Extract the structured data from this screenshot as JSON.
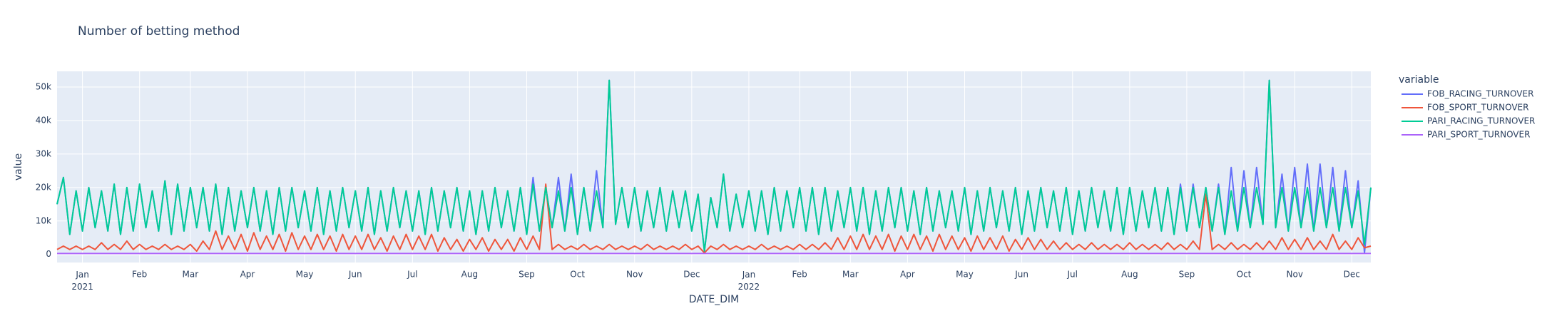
{
  "chart_data": {
    "type": "line",
    "title": "Number of betting method",
    "x_label": "DATE_DIM",
    "y_label": "value",
    "legend_title": "variable",
    "grid": true,
    "ylim": [
      -2400,
      54700
    ],
    "yticks": [
      0,
      {
        "value": 10000,
        "label": "10k"
      },
      {
        "value": 20000,
        "label": "20k"
      },
      {
        "value": 30000,
        "label": "30k"
      },
      {
        "value": 40000,
        "label": "40k"
      },
      {
        "value": 50000,
        "label": "50k"
      }
    ],
    "categories": [
      null,
      null,
      null,
      null,
      "Jan\n2021",
      null,
      null,
      null,
      null,
      null,
      null,
      null,
      null,
      "Feb",
      null,
      null,
      null,
      null,
      null,
      null,
      null,
      "Mar",
      null,
      null,
      null,
      null,
      null,
      null,
      null,
      null,
      "Apr",
      null,
      null,
      null,
      null,
      null,
      null,
      null,
      null,
      "May",
      null,
      null,
      null,
      null,
      null,
      null,
      null,
      "Jun",
      null,
      null,
      null,
      null,
      null,
      null,
      null,
      null,
      "Jul",
      null,
      null,
      null,
      null,
      null,
      null,
      null,
      null,
      "Aug",
      null,
      null,
      null,
      null,
      null,
      null,
      null,
      null,
      "Sep",
      null,
      null,
      null,
      null,
      null,
      null,
      null,
      "Oct",
      null,
      null,
      null,
      null,
      null,
      null,
      null,
      null,
      "Nov",
      null,
      null,
      null,
      null,
      null,
      null,
      null,
      null,
      "Dec",
      null,
      null,
      null,
      null,
      null,
      null,
      null,
      null,
      "Jan\n2022",
      null,
      null,
      null,
      null,
      null,
      null,
      null,
      "Feb",
      null,
      null,
      null,
      null,
      null,
      null,
      null,
      "Mar",
      null,
      null,
      null,
      null,
      null,
      null,
      null,
      null,
      "Apr",
      null,
      null,
      null,
      null,
      null,
      null,
      null,
      null,
      "May",
      null,
      null,
      null,
      null,
      null,
      null,
      null,
      null,
      "Jun",
      null,
      null,
      null,
      null,
      null,
      null,
      null,
      "Jul",
      null,
      null,
      null,
      null,
      null,
      null,
      null,
      null,
      "Aug",
      null,
      null,
      null,
      null,
      null,
      null,
      null,
      null,
      "Sep",
      null,
      null,
      null,
      null,
      null,
      null,
      null,
      null,
      "Oct",
      null,
      null,
      null,
      null,
      null,
      null,
      null,
      "Nov",
      null,
      null,
      null,
      null,
      null,
      null,
      null,
      null,
      "Dec",
      null,
      null,
      null
    ],
    "series": [
      {
        "name": "FOB_RACING_TURNOVER",
        "color": "#636efa",
        "values": [
          15000,
          23000,
          6000,
          19000,
          7000,
          20000,
          8000,
          19000,
          7000,
          21000,
          6000,
          20000,
          7000,
          21000,
          8000,
          19000,
          7000,
          22000,
          6000,
          21000,
          7000,
          20000,
          8000,
          20000,
          7000,
          21000,
          6000,
          20000,
          7000,
          19000,
          8000,
          20000,
          7000,
          19000,
          6000,
          20000,
          7000,
          20000,
          8000,
          19000,
          7000,
          20000,
          6000,
          19000,
          7000,
          20000,
          8000,
          19000,
          7000,
          20000,
          6000,
          19000,
          7000,
          20000,
          8000,
          19000,
          7000,
          19000,
          6000,
          20000,
          7000,
          19000,
          8000,
          20000,
          7000,
          19000,
          6000,
          19000,
          7000,
          20000,
          8000,
          19000,
          7000,
          20000,
          6000,
          23000,
          7000,
          20000,
          8000,
          23000,
          7000,
          24000,
          6000,
          20000,
          7000,
          25000,
          8000,
          52000,
          9000,
          20000,
          8000,
          20000,
          7000,
          19000,
          8000,
          20000,
          7000,
          19000,
          8000,
          19000,
          7000,
          18000,
          1000,
          17000,
          8000,
          24000,
          7000,
          18000,
          8000,
          19000,
          7000,
          19000,
          6000,
          20000,
          7000,
          19000,
          8000,
          20000,
          7000,
          20000,
          6000,
          20000,
          7000,
          19000,
          8000,
          20000,
          7000,
          20000,
          6000,
          19000,
          7000,
          20000,
          8000,
          20000,
          7000,
          19000,
          6000,
          20000,
          7000,
          19000,
          8000,
          19000,
          7000,
          20000,
          6000,
          19000,
          7000,
          20000,
          8000,
          19000,
          7000,
          20000,
          6000,
          19000,
          7000,
          20000,
          8000,
          19000,
          7000,
          20000,
          6000,
          19000,
          7000,
          20000,
          8000,
          19000,
          7000,
          20000,
          6000,
          20000,
          7000,
          19000,
          8000,
          20000,
          7000,
          20000,
          6000,
          21000,
          7000,
          21000,
          8000,
          20000,
          7000,
          21000,
          6000,
          26000,
          7000,
          25000,
          8000,
          26000,
          9000,
          52000,
          8000,
          24000,
          7000,
          26000,
          8000,
          27000,
          7000,
          27000,
          8000,
          26000,
          7000,
          25000,
          8000,
          22000,
          500,
          20000
        ]
      },
      {
        "name": "FOB_SPORT_TURNOVER",
        "color": "#EF553B",
        "values": [
          1500,
          2500,
          1500,
          2500,
          1500,
          2500,
          1500,
          3500,
          1500,
          3000,
          1500,
          4000,
          1500,
          3000,
          1500,
          2500,
          1500,
          3000,
          1500,
          2500,
          1500,
          3000,
          1000,
          4000,
          1500,
          7000,
          1500,
          5500,
          1500,
          6000,
          1000,
          6500,
          1500,
          5500,
          1500,
          6000,
          1000,
          6500,
          1500,
          5500,
          1500,
          6000,
          1500,
          5500,
          1000,
          6000,
          1500,
          5500,
          1500,
          6000,
          1500,
          5000,
          1000,
          5500,
          1500,
          6000,
          1500,
          5500,
          1500,
          6000,
          1000,
          5000,
          1500,
          4500,
          1000,
          4500,
          1500,
          5000,
          1000,
          4500,
          1500,
          4500,
          1000,
          5000,
          1500,
          5500,
          1500,
          21000,
          1500,
          3000,
          1500,
          2500,
          1500,
          3000,
          1500,
          2500,
          1500,
          3000,
          1500,
          2500,
          1500,
          2500,
          1500,
          3000,
          1500,
          2500,
          1500,
          2500,
          1500,
          3000,
          1500,
          2500,
          500,
          2500,
          1500,
          3000,
          1500,
          2500,
          1500,
          2500,
          1500,
          3000,
          1500,
          2500,
          1500,
          2500,
          1500,
          3000,
          1500,
          3000,
          1500,
          3500,
          1500,
          5000,
          1500,
          5500,
          1500,
          6000,
          1500,
          5500,
          1500,
          6000,
          1000,
          5500,
          1500,
          6000,
          1500,
          5500,
          1000,
          6000,
          1500,
          5500,
          1500,
          5000,
          1000,
          5500,
          1500,
          5000,
          1500,
          5500,
          1000,
          4500,
          1500,
          5000,
          1500,
          4500,
          1500,
          4000,
          1500,
          3500,
          1500,
          3000,
          1500,
          3500,
          1500,
          3000,
          1500,
          3000,
          1500,
          3500,
          1500,
          3000,
          1500,
          3000,
          1500,
          3500,
          1500,
          3000,
          1500,
          4000,
          1500,
          18000,
          1500,
          3000,
          1500,
          3500,
          1500,
          3000,
          1500,
          3500,
          1500,
          4000,
          1500,
          5000,
          1500,
          4500,
          1500,
          5000,
          1500,
          4000,
          1500,
          6000,
          1500,
          4000,
          1500,
          5000,
          2000,
          2500
        ]
      },
      {
        "name": "PARI_RACING_TURNOVER",
        "color": "#00cc96",
        "values": [
          15000,
          23000,
          6000,
          19000,
          7000,
          20000,
          8000,
          19000,
          7000,
          21000,
          6000,
          20000,
          7000,
          21000,
          8000,
          19000,
          7000,
          22000,
          6000,
          21000,
          7000,
          20000,
          8000,
          20000,
          7000,
          21000,
          6000,
          20000,
          7000,
          19000,
          8000,
          20000,
          7000,
          19000,
          6000,
          20000,
          7000,
          20000,
          8000,
          19000,
          7000,
          20000,
          6000,
          19000,
          7000,
          20000,
          8000,
          19000,
          7000,
          20000,
          6000,
          19000,
          7000,
          20000,
          8000,
          19000,
          7000,
          19000,
          6000,
          20000,
          7000,
          19000,
          8000,
          20000,
          7000,
          19000,
          6000,
          19000,
          7000,
          20000,
          8000,
          19000,
          7000,
          20000,
          6000,
          21000,
          7000,
          20000,
          8000,
          19000,
          7000,
          20000,
          6000,
          20000,
          7000,
          19000,
          8000,
          52000,
          9000,
          20000,
          8000,
          20000,
          7000,
          19000,
          8000,
          20000,
          7000,
          19000,
          8000,
          19000,
          7000,
          18000,
          1000,
          17000,
          8000,
          24000,
          7000,
          18000,
          8000,
          19000,
          7000,
          19000,
          6000,
          20000,
          7000,
          19000,
          8000,
          20000,
          7000,
          20000,
          6000,
          20000,
          7000,
          19000,
          8000,
          20000,
          7000,
          20000,
          6000,
          19000,
          7000,
          20000,
          8000,
          20000,
          7000,
          19000,
          6000,
          20000,
          7000,
          19000,
          8000,
          19000,
          7000,
          20000,
          6000,
          19000,
          7000,
          20000,
          8000,
          19000,
          7000,
          20000,
          6000,
          19000,
          7000,
          20000,
          8000,
          19000,
          7000,
          20000,
          6000,
          19000,
          7000,
          20000,
          8000,
          19000,
          7000,
          20000,
          6000,
          20000,
          7000,
          19000,
          8000,
          20000,
          7000,
          20000,
          6000,
          20000,
          7000,
          20000,
          8000,
          20000,
          7000,
          20000,
          6000,
          19000,
          7000,
          20000,
          8000,
          20000,
          9000,
          52000,
          8000,
          20000,
          7000,
          20000,
          8000,
          20000,
          7000,
          20000,
          8000,
          20000,
          7000,
          20000,
          8000,
          19000,
          3000,
          20000
        ]
      },
      {
        "name": "PARI_SPORT_TURNOVER",
        "color": "#ab63fa",
        "values": [
          300,
          300,
          300,
          300,
          300,
          300,
          300,
          300,
          300,
          300,
          300,
          300,
          300,
          300,
          300,
          300,
          300,
          300,
          300,
          300,
          300,
          300,
          300,
          300,
          300,
          300,
          300,
          300,
          300,
          300,
          300,
          300,
          300,
          300,
          300,
          300,
          300,
          300,
          300,
          300,
          300,
          300,
          300,
          300,
          300,
          300,
          300,
          300,
          300,
          300,
          300,
          300,
          300,
          300,
          300,
          300,
          300,
          300,
          300,
          300,
          300,
          300,
          300,
          300,
          300,
          300,
          300,
          300,
          300,
          300,
          300,
          300,
          300,
          300,
          300,
          300,
          300,
          300,
          300,
          300,
          300,
          300,
          300,
          300,
          300,
          300,
          300,
          300,
          300,
          300,
          300,
          300,
          300,
          300,
          300,
          300,
          300,
          300,
          300,
          300,
          300,
          300,
          300,
          300,
          300,
          300,
          300,
          300,
          300,
          300,
          300,
          300,
          300,
          300,
          300,
          300,
          300,
          300,
          300,
          300,
          300,
          300,
          300,
          300,
          300,
          300,
          300,
          300,
          300,
          300,
          300,
          300,
          300,
          300,
          300,
          300,
          300,
          300,
          300,
          300,
          300,
          300,
          300,
          300,
          300,
          300,
          300,
          300,
          300,
          300,
          300,
          300,
          300,
          300,
          300,
          300,
          300,
          300,
          300,
          300,
          300,
          300,
          300,
          300,
          300,
          300,
          300,
          300,
          300,
          300,
          300,
          300,
          300,
          300,
          300,
          300,
          300,
          300,
          300,
          300,
          300,
          300,
          300,
          300,
          300,
          300,
          300,
          300,
          300,
          300,
          300,
          300,
          300,
          300,
          300,
          300,
          300,
          300,
          300,
          300,
          300,
          300,
          300,
          300,
          300,
          300,
          300,
          300
        ]
      }
    ]
  }
}
